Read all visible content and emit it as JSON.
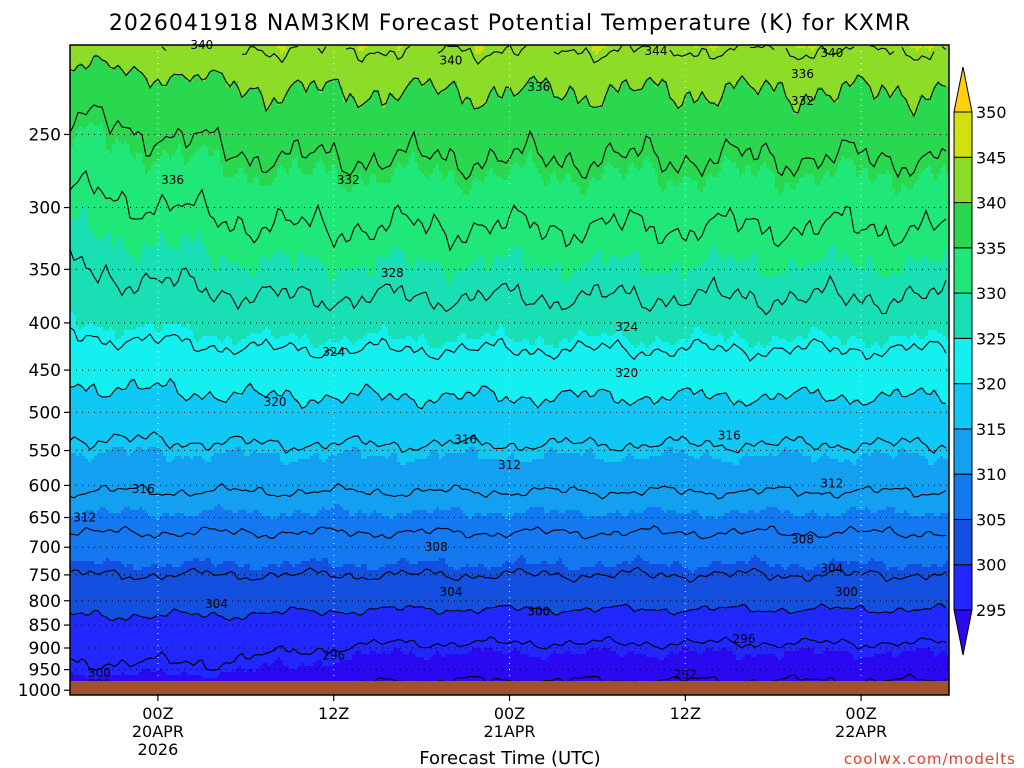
{
  "chart_data": {
    "type": "heatmap",
    "title": "2026041918 NAM3KM Forecast Potential Temperature (K) for KXMR",
    "xlabel": "Forecast Time (UTC)",
    "ylabel": "",
    "yaxis_unit": "pressure (hPa), inverted",
    "yticks": [
      250,
      300,
      350,
      400,
      450,
      500,
      550,
      600,
      650,
      700,
      750,
      800,
      850,
      900,
      950,
      1000
    ],
    "xticks": [
      {
        "hour": 6,
        "line1": "00Z",
        "line2": "20APR",
        "line3": "2026"
      },
      {
        "hour": 18,
        "line1": "12Z",
        "line2": "",
        "line3": ""
      },
      {
        "hour": 30,
        "line1": "00Z",
        "line2": "21APR",
        "line3": ""
      },
      {
        "hour": 42,
        "line1": "12Z",
        "line2": "",
        "line3": ""
      },
      {
        "hour": 54,
        "line1": "00Z",
        "line2": "22APR",
        "line3": ""
      }
    ],
    "xlim_hours": [
      0,
      60
    ],
    "ylim_hpa": [
      200,
      1012
    ],
    "colorbar": {
      "levels": [
        295,
        300,
        305,
        310,
        315,
        320,
        325,
        330,
        335,
        340,
        345,
        350
      ],
      "tick_labels": [
        "295",
        "300",
        "305",
        "310",
        "315",
        "320",
        "325",
        "330",
        "335",
        "340",
        "345",
        "350"
      ],
      "colors": [
        "#2a08f0",
        "#2028ff",
        "#1450e0",
        "#1478f0",
        "#14a0f0",
        "#10c8f5",
        "#14f0f0",
        "#18e0b4",
        "#20e878",
        "#2ad850",
        "#8cdc28",
        "#d2e010",
        "#ffd010"
      ]
    },
    "contour_interval": 4,
    "contour_levels_labeled": [
      {
        "level": 292,
        "hour": 42,
        "p": 962
      },
      {
        "level": 296,
        "hour": 46,
        "p": 880
      },
      {
        "level": 296,
        "hour": 18,
        "p": 917
      },
      {
        "level": 298,
        "hour": 2,
        "p": 985
      },
      {
        "level": 300,
        "hour": 2,
        "p": 958
      },
      {
        "level": 300,
        "hour": 32,
        "p": 822
      },
      {
        "level": 300,
        "hour": 53,
        "p": 783
      },
      {
        "level": 304,
        "hour": 10,
        "p": 806
      },
      {
        "level": 304,
        "hour": 26,
        "p": 783
      },
      {
        "level": 304,
        "hour": 52,
        "p": 738
      },
      {
        "level": 308,
        "hour": 25,
        "p": 700
      },
      {
        "level": 308,
        "hour": 50,
        "p": 687
      },
      {
        "level": 312,
        "hour": 1,
        "p": 650
      },
      {
        "level": 312,
        "hour": 30,
        "p": 570
      },
      {
        "level": 312,
        "hour": 52,
        "p": 597
      },
      {
        "level": 316,
        "hour": 5,
        "p": 605
      },
      {
        "level": 316,
        "hour": 27,
        "p": 535
      },
      {
        "level": 316,
        "hour": 45,
        "p": 530
      },
      {
        "level": 320,
        "hour": 14,
        "p": 487
      },
      {
        "level": 320,
        "hour": 38,
        "p": 453
      },
      {
        "level": 324,
        "hour": 18,
        "p": 430
      },
      {
        "level": 324,
        "hour": 38,
        "p": 404
      },
      {
        "level": 328,
        "hour": 22,
        "p": 353
      },
      {
        "level": 332,
        "hour": 19,
        "p": 280
      },
      {
        "level": 332,
        "hour": 50,
        "p": 230
      },
      {
        "level": 336,
        "hour": 7,
        "p": 280
      },
      {
        "level": 336,
        "hour": 32,
        "p": 222
      },
      {
        "level": 336,
        "hour": 50,
        "p": 215
      },
      {
        "level": 340,
        "hour": 9,
        "p": 200
      },
      {
        "level": 340,
        "hour": 26,
        "p": 208
      },
      {
        "level": 340,
        "hour": 52,
        "p": 204
      },
      {
        "level": 344,
        "hour": 40,
        "p": 203
      }
    ],
    "theta_profile": [
      {
        "p": 1000,
        "theta": 293
      },
      {
        "p": 950,
        "theta": 295.5
      },
      {
        "p": 900,
        "theta": 297
      },
      {
        "p": 850,
        "theta": 299
      },
      {
        "p": 800,
        "theta": 301.5
      },
      {
        "p": 750,
        "theta": 304
      },
      {
        "p": 700,
        "theta": 306.5
      },
      {
        "p": 650,
        "theta": 309.5
      },
      {
        "p": 600,
        "theta": 312.5
      },
      {
        "p": 550,
        "theta": 315
      },
      {
        "p": 500,
        "theta": 318
      },
      {
        "p": 450,
        "theta": 321
      },
      {
        "p": 400,
        "theta": 325
      },
      {
        "p": 350,
        "theta": 328
      },
      {
        "p": 300,
        "theta": 331
      },
      {
        "p": 250,
        "theta": 335
      },
      {
        "p": 220,
        "theta": 338
      },
      {
        "p": 200,
        "theta": 342
      }
    ]
  },
  "credit": "coolwx.com/modelts"
}
